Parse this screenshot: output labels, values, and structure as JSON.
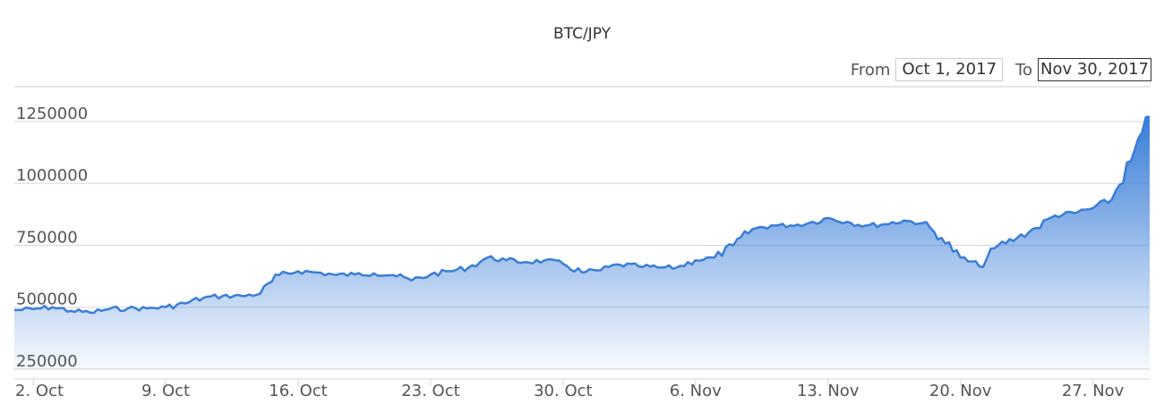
{
  "chart_data": {
    "type": "area",
    "title": "BTC/JPY",
    "xlabel": "",
    "ylabel": "",
    "x_range": [
      "2017-10-01",
      "2017-11-30"
    ],
    "ylim": [
      210000,
      1380000
    ],
    "y_ticks": [
      250000,
      500000,
      750000,
      1000000,
      1250000
    ],
    "x_ticks": [
      {
        "date": "2017-10-02",
        "label": "2. Oct"
      },
      {
        "date": "2017-10-09",
        "label": "9. Oct"
      },
      {
        "date": "2017-10-16",
        "label": "16. Oct"
      },
      {
        "date": "2017-10-23",
        "label": "23. Oct"
      },
      {
        "date": "2017-10-30",
        "label": "30. Oct"
      },
      {
        "date": "2017-11-06",
        "label": "6. Nov"
      },
      {
        "date": "2017-11-13",
        "label": "13. Nov"
      },
      {
        "date": "2017-11-20",
        "label": "20. Nov"
      },
      {
        "date": "2017-11-27",
        "label": "27. Nov"
      }
    ],
    "grid": true,
    "series": [
      {
        "color": "#3a7dd8",
        "points": [
          [
            "2017-10-01",
            488000
          ],
          [
            "2017-10-02",
            492000
          ],
          [
            "2017-10-03",
            500000
          ],
          [
            "2017-10-04",
            485000
          ],
          [
            "2017-10-05",
            478000
          ],
          [
            "2017-10-06",
            492000
          ],
          [
            "2017-10-07",
            495000
          ],
          [
            "2017-10-08",
            495000
          ],
          [
            "2017-10-09",
            500000
          ],
          [
            "2017-10-10",
            515000
          ],
          [
            "2017-10-11",
            538000
          ],
          [
            "2017-10-12",
            545000
          ],
          [
            "2017-10-13",
            545000
          ],
          [
            "2017-10-14",
            555000
          ],
          [
            "2017-10-15",
            630000
          ],
          [
            "2017-10-16",
            645000
          ],
          [
            "2017-10-17",
            640000
          ],
          [
            "2017-10-18",
            630000
          ],
          [
            "2017-10-19",
            632000
          ],
          [
            "2017-10-20",
            637000
          ],
          [
            "2017-10-21",
            630000
          ],
          [
            "2017-10-22",
            608000
          ],
          [
            "2017-10-23",
            632000
          ],
          [
            "2017-10-24",
            645000
          ],
          [
            "2017-10-25",
            660000
          ],
          [
            "2017-10-26",
            700000
          ],
          [
            "2017-10-27",
            690000
          ],
          [
            "2017-10-28",
            682000
          ],
          [
            "2017-10-29",
            688000
          ],
          [
            "2017-10-30",
            675000
          ],
          [
            "2017-10-31",
            640000
          ],
          [
            "2017-11-01",
            650000
          ],
          [
            "2017-11-02",
            672000
          ],
          [
            "2017-11-03",
            665000
          ],
          [
            "2017-11-04",
            660000
          ],
          [
            "2017-11-05",
            660000
          ],
          [
            "2017-11-06",
            690000
          ],
          [
            "2017-11-07",
            700000
          ],
          [
            "2017-11-08",
            750000
          ],
          [
            "2017-11-09",
            815000
          ],
          [
            "2017-11-10",
            830000
          ],
          [
            "2017-11-11",
            830000
          ],
          [
            "2017-11-12",
            840000
          ],
          [
            "2017-11-13",
            860000
          ],
          [
            "2017-11-14",
            845000
          ],
          [
            "2017-11-15",
            830000
          ],
          [
            "2017-11-16",
            835000
          ],
          [
            "2017-11-17",
            850000
          ],
          [
            "2017-11-18",
            840000
          ],
          [
            "2017-11-19",
            780000
          ],
          [
            "2017-11-20",
            700000
          ],
          [
            "2017-11-21",
            665000
          ],
          [
            "2017-11-22",
            750000
          ],
          [
            "2017-11-23",
            780000
          ],
          [
            "2017-11-24",
            820000
          ],
          [
            "2017-11-25",
            870000
          ],
          [
            "2017-11-26",
            880000
          ],
          [
            "2017-11-27",
            900000
          ],
          [
            "2017-11-28",
            935000
          ],
          [
            "2017-11-29",
            1090000
          ],
          [
            "2017-11-30",
            1270000
          ]
        ]
      }
    ]
  },
  "range_selector": {
    "from_label": "From",
    "from_value": "Oct 1, 2017",
    "to_label": "To",
    "to_value": "Nov 30, 2017"
  }
}
